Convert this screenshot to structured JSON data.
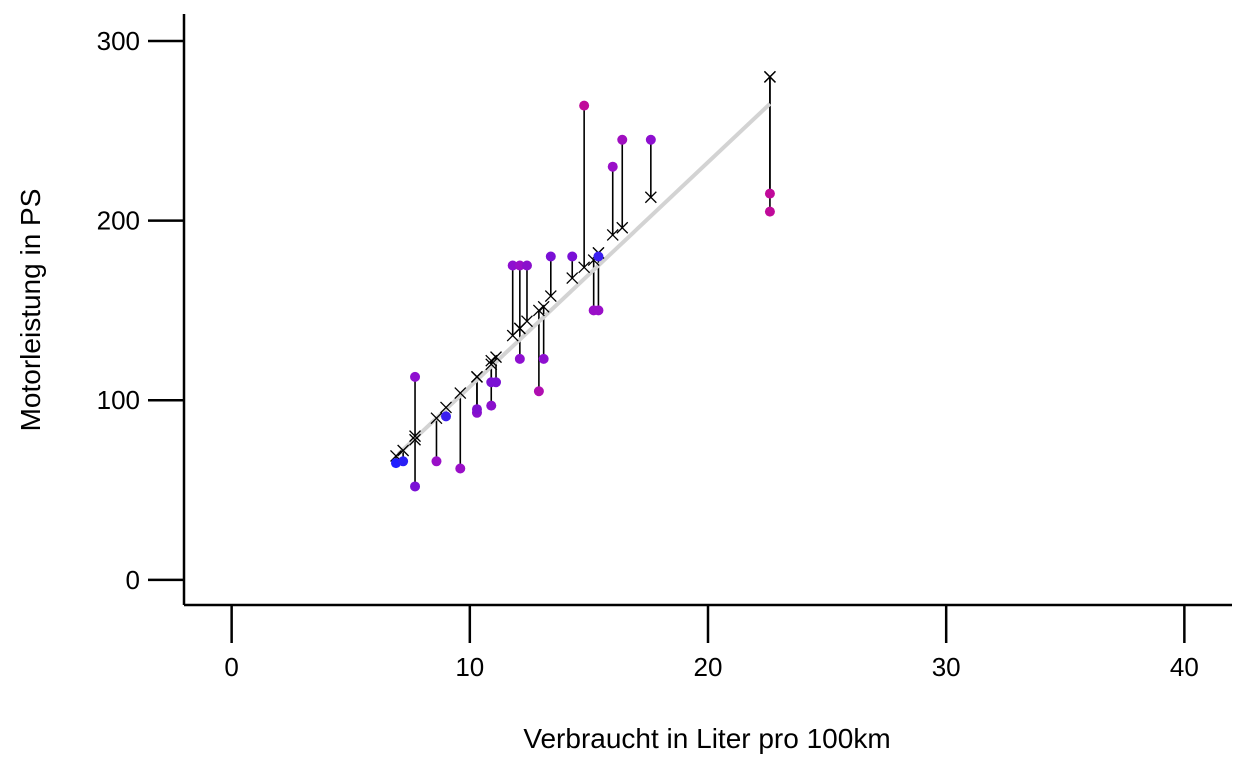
{
  "chart_data": {
    "type": "scatter",
    "xlabel": "Verbraucht in Liter pro 100km",
    "ylabel": "Motorleistung in PS",
    "xlim": [
      -2,
      42
    ],
    "ylim": [
      -14,
      315
    ],
    "x_ticks": [
      0,
      10,
      20,
      30,
      40
    ],
    "y_ticks": [
      0,
      100,
      200,
      300
    ],
    "grid": false,
    "legend": "none",
    "fit_line": {
      "from": [
        7.0,
        70
      ],
      "to": [
        22.6,
        265
      ],
      "color": "#d3d3d3"
    },
    "points": [
      {
        "x": 6.9,
        "y": 65,
        "pred": 69,
        "color": "#1f1fff"
      },
      {
        "x": 7.2,
        "y": 66,
        "pred": 72,
        "color": "#2a1ff5"
      },
      {
        "x": 7.7,
        "y": 52,
        "pred": 78,
        "color": "#7a10d6"
      },
      {
        "x": 7.7,
        "y": 113,
        "pred": 80,
        "color": "#8e0fd0"
      },
      {
        "x": 8.6,
        "y": 66,
        "pred": 90,
        "color": "#9a0fc8"
      },
      {
        "x": 9.0,
        "y": 91,
        "pred": 96,
        "color": "#3a1ff0"
      },
      {
        "x": 9.6,
        "y": 62,
        "pred": 104,
        "color": "#9a0fc8"
      },
      {
        "x": 10.3,
        "y": 93,
        "pred": 113,
        "color": "#8a10cc"
      },
      {
        "x": 10.3,
        "y": 95,
        "pred": 113,
        "color": "#7f10d0"
      },
      {
        "x": 10.9,
        "y": 97,
        "pred": 120,
        "color": "#8a10cc"
      },
      {
        "x": 10.9,
        "y": 110,
        "pred": 122,
        "color": "#7a12d4"
      },
      {
        "x": 11.1,
        "y": 110,
        "pred": 124,
        "color": "#7a12d4"
      },
      {
        "x": 11.8,
        "y": 175,
        "pred": 136,
        "color": "#8e0fd0"
      },
      {
        "x": 12.1,
        "y": 175,
        "pred": 140,
        "color": "#9a0fc8"
      },
      {
        "x": 12.1,
        "y": 123,
        "pred": 140,
        "color": "#8e0fd0"
      },
      {
        "x": 12.4,
        "y": 175,
        "pred": 144,
        "color": "#8a10cc"
      },
      {
        "x": 12.9,
        "y": 105,
        "pred": 150,
        "color": "#b00eb0"
      },
      {
        "x": 13.1,
        "y": 123,
        "pred": 152,
        "color": "#8e0fd0"
      },
      {
        "x": 13.4,
        "y": 180,
        "pred": 158,
        "color": "#7a10d6"
      },
      {
        "x": 14.3,
        "y": 180,
        "pred": 168,
        "color": "#7a10d6"
      },
      {
        "x": 14.8,
        "y": 264,
        "pred": 174,
        "color": "#c00a9a"
      },
      {
        "x": 15.2,
        "y": 150,
        "pred": 178,
        "color": "#9a0fc8"
      },
      {
        "x": 15.4,
        "y": 150,
        "pred": 182,
        "color": "#9a0fc8"
      },
      {
        "x": 15.4,
        "y": 180,
        "pred": 182,
        "color": "#3a1ff0"
      },
      {
        "x": 16.0,
        "y": 230,
        "pred": 192,
        "color": "#9a0fc8"
      },
      {
        "x": 16.4,
        "y": 245,
        "pred": 196,
        "color": "#a00ec0"
      },
      {
        "x": 17.6,
        "y": 245,
        "pred": 213,
        "color": "#8e0fd0"
      },
      {
        "x": 22.6,
        "y": 215,
        "pred": 280,
        "color": "#c00a9a"
      },
      {
        "x": 22.6,
        "y": 205,
        "pred": 280,
        "color": "#c00a9a"
      }
    ]
  }
}
